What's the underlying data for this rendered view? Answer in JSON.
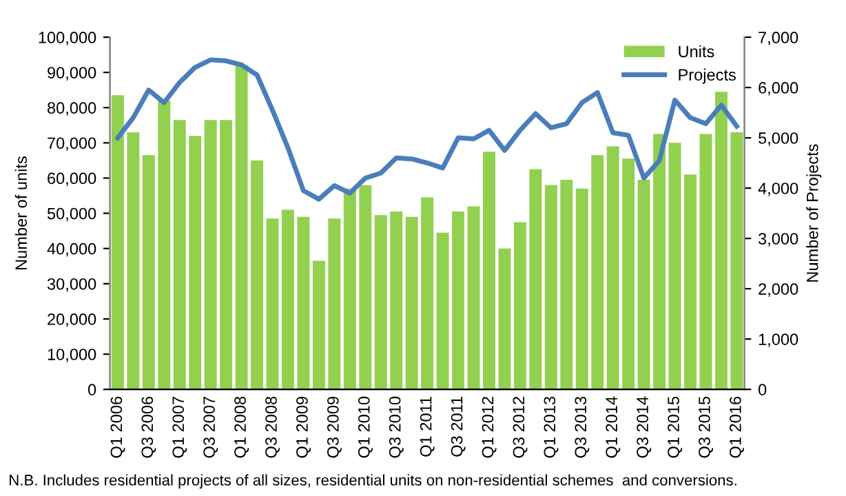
{
  "chart_data": {
    "type": "bar",
    "ylabel": "Number of units",
    "y2label": "Number of Projects",
    "annotations": [
      "N.B. Includes residential projects of all sizes, residential units on non-residential schemes  and conversions."
    ],
    "categories": [
      "Q1 2006",
      null,
      "Q3 2006",
      null,
      "Q1 2007",
      null,
      "Q3 2007",
      null,
      "Q1 2008",
      null,
      "Q3 2008",
      null,
      "Q1 2009",
      null,
      "Q3 2009",
      null,
      "Q1 2010",
      null,
      "Q3 2010",
      null,
      "Q1 2011",
      null,
      "Q3 2011",
      null,
      "Q1 2012",
      null,
      "Q3 2012",
      null,
      "Q1 2013",
      null,
      "Q3 2013",
      null,
      "Q1 2014",
      null,
      "Q3 2014",
      null,
      "Q1 2015",
      null,
      "Q3 2015",
      null,
      "Q1 2016"
    ],
    "series": [
      {
        "name": "Units",
        "color": "#92d050",
        "values": [
          83500,
          73000,
          66500,
          82000,
          76500,
          72000,
          76500,
          76500,
          92000,
          65000,
          48500,
          51000,
          49000,
          36500,
          48500,
          57000,
          58000,
          49500,
          50500,
          49000,
          54500,
          44500,
          50500,
          52000,
          67500,
          40000,
          47500,
          62500,
          58000,
          59500,
          57000,
          66500,
          69000,
          65500,
          59500,
          72500,
          70000,
          61000,
          72500,
          84500,
          73000
        ]
      },
      {
        "name": "Projects",
        "type": "line",
        "axis": "y2",
        "color": "#4a7ebb",
        "values": [
          5000,
          5400,
          5950,
          5700,
          6100,
          6400,
          6550,
          6530,
          6450,
          6250,
          5550,
          4800,
          3950,
          3780,
          4050,
          3900,
          4200,
          4300,
          4600,
          4580,
          4500,
          4400,
          5000,
          4980,
          5150,
          4750,
          5150,
          5480,
          5200,
          5280,
          5700,
          5900,
          5100,
          5050,
          4200,
          4550,
          5750,
          5400,
          5280,
          5650,
          5230
        ]
      }
    ],
    "ylim": [
      0,
      100000
    ],
    "yticks": [
      0,
      {
        "value": 10000,
        "label": "10,000"
      },
      {
        "value": 20000,
        "label": "20,000"
      },
      {
        "value": 30000,
        "label": "30,000"
      },
      {
        "value": 40000,
        "label": "40,000"
      },
      {
        "value": 50000,
        "label": "50,000"
      },
      {
        "value": 60000,
        "label": "60,000"
      },
      {
        "value": 70000,
        "label": "70,000"
      },
      {
        "value": 80000,
        "label": "80,000"
      },
      {
        "value": 90000,
        "label": "90,000"
      },
      {
        "value": 100000,
        "label": "100,000"
      }
    ],
    "y2lim": [
      0,
      7000
    ],
    "y2ticks": [
      0,
      {
        "value": 1000,
        "label": "1,000"
      },
      {
        "value": 2000,
        "label": "2,000"
      },
      {
        "value": 3000,
        "label": "3,000"
      },
      {
        "value": 4000,
        "label": "4,000"
      },
      {
        "value": 5000,
        "label": "5,000"
      },
      {
        "value": 6000,
        "label": "6,000"
      },
      {
        "value": 7000,
        "label": "7,000"
      }
    ],
    "grid": false,
    "legend": "top right",
    "marker": "none",
    "line_style": "solid"
  }
}
